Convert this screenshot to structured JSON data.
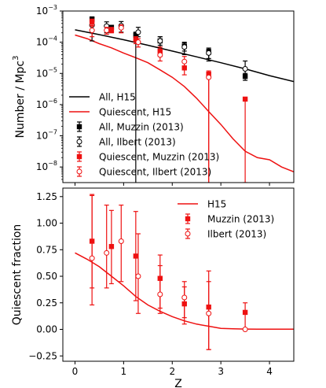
{
  "colors": {
    "all": "#000000",
    "quiescent": "#ee1111",
    "axis": "#000000"
  },
  "chart_data": [
    {
      "id": "top",
      "type": "line",
      "scale_y": "log",
      "ylabel": "Number / Mpc",
      "ylabel_sup": "3",
      "xlim": [
        -0.25,
        4.5
      ],
      "ylim_exp": [
        -8.5,
        -3
      ],
      "x_ticks": [
        0,
        1,
        2,
        3,
        4
      ],
      "y_ticks": [
        {
          "exp": -8,
          "label": "10",
          "sup": "−8"
        },
        {
          "exp": -7,
          "label": "10",
          "sup": "−7"
        },
        {
          "exp": -6,
          "label": "10",
          "sup": "−6"
        },
        {
          "exp": -5,
          "label": "10",
          "sup": "−5"
        },
        {
          "exp": -4,
          "label": "10",
          "sup": "−4"
        },
        {
          "exp": -3,
          "label": "10",
          "sup": "−3"
        }
      ],
      "legend": {
        "placement": "bottom-left",
        "entries": [
          {
            "label": "All, H15",
            "marker": "line",
            "series": "all"
          },
          {
            "label": "Quiescent, H15",
            "marker": "line",
            "series": "quiescent"
          },
          {
            "label": "All, Muzzin (2013)",
            "marker": "square",
            "series": "all"
          },
          {
            "label": "All, Ilbert (2013)",
            "marker": "circle",
            "series": "all"
          },
          {
            "label": "Quiescent, Muzzin (2013)",
            "marker": "square",
            "series": "quiescent"
          },
          {
            "label": "Quiescent, Ilbert (2013)",
            "marker": "circle",
            "series": "quiescent"
          }
        ]
      },
      "lines": [
        {
          "series": "all",
          "x": [
            0,
            0.5,
            1,
            1.5,
            2,
            2.5,
            3,
            3.5,
            4,
            4.5
          ],
          "y": [
            0.00025,
            0.000175,
            0.00012,
            8e-05,
            5.2e-05,
            3.4e-05,
            2.2e-05,
            1.4e-05,
            8.5e-06,
            5.5e-06
          ]
        },
        {
          "series": "quiescent",
          "x": [
            0,
            0.25,
            0.5,
            0.75,
            1,
            1.25,
            1.5,
            1.75,
            2,
            2.25,
            2.5,
            2.75,
            3,
            3.25,
            3.5,
            3.75,
            4,
            4.25,
            4.5
          ],
          "y": [
            0.00017,
            0.00013,
            9e-05,
            6.6e-05,
            4.5e-05,
            3.2e-05,
            2.2e-05,
            1.3e-05,
            7.5e-06,
            3.8e-06,
            1.6e-06,
            6e-07,
            2.3e-07,
            8e-08,
            3.2e-08,
            2e-08,
            1.7e-08,
            1e-08,
            7e-09
          ]
        }
      ],
      "points": [
        {
          "series": "all",
          "marker": "square",
          "x": [
            0.35,
            0.75,
            1.25,
            1.75,
            2.25,
            2.75,
            3.5
          ],
          "y": [
            0.00055,
            0.0003,
            0.00017,
            0.00011,
            7.5e-05,
            4.8e-05,
            8e-06
          ],
          "ylo": [
            0.00045,
            0.00026,
            1e-09,
            8e-05,
            5.2e-05,
            3e-05,
            6e-06
          ],
          "yhi": [
            0.00065,
            0.00034,
            0.00021,
            0.00015,
            9.5e-05,
            6.5e-05,
            1e-05
          ]
        },
        {
          "series": "all",
          "marker": "circle",
          "x": [
            0.35,
            0.65,
            0.95,
            1.3,
            1.75,
            2.25,
            2.75,
            3.5
          ],
          "y": [
            0.00035,
            0.00033,
            0.00034,
            0.00021,
            0.00011,
            7e-05,
            4.5e-05,
            1.4e-05
          ],
          "ylo": [
            0.00011,
            0.0002,
            0.00021,
            0.00015,
            7e-05,
            4e-05,
            2.5e-05,
            8e-06
          ],
          "yhi": [
            0.0006,
            0.00045,
            0.00046,
            0.0003,
            0.00015,
            0.0001,
            6e-05,
            2.5e-05
          ]
        },
        {
          "series": "quiescent",
          "marker": "square",
          "x": [
            0.35,
            0.75,
            1.25,
            1.75,
            2.25,
            2.75,
            3.5
          ],
          "y": [
            0.00045,
            0.00024,
            0.00012,
            5.2e-05,
            1.5e-05,
            9.5e-06,
            1.5e-06
          ],
          "ylo": [
            0.00035,
            0.0002,
            9e-05,
            3.5e-05,
            9e-06,
            1e-09,
            1e-09
          ],
          "yhi": [
            0.00055,
            0.0003,
            0.00015,
            7e-05,
            2.2e-05,
            1.2e-05,
            1.5e-06
          ]
        },
        {
          "series": "quiescent",
          "marker": "circle",
          "x": [
            0.35,
            0.65,
            0.95,
            1.3,
            1.75,
            2.25,
            2.75,
            3.5
          ],
          "y": [
            0.00024,
            0.00024,
            0.00029,
            0.0001,
            3.9e-05,
            2.4e-05,
            7.5e-06,
            1e-09
          ],
          "ylo": [
            0.00015,
            0.00018,
            0.0002,
            7e-05,
            2.5e-05,
            1.5e-05,
            1e-09,
            1e-09
          ],
          "yhi": [
            0.00033,
            0.0003,
            0.00036,
            0.00013,
            5.2e-05,
            3.5e-05,
            1e-05,
            1e-09
          ]
        }
      ]
    },
    {
      "id": "bottom",
      "type": "line",
      "xlabel": "Z",
      "ylabel": "Quiescent fraction",
      "xlim": [
        -0.25,
        4.5
      ],
      "ylim": [
        -0.3,
        1.33
      ],
      "x_ticks": [
        0,
        1,
        2,
        3,
        4
      ],
      "y_ticks": [
        -0.25,
        0.0,
        0.25,
        0.5,
        0.75,
        1.0,
        1.25
      ],
      "y_tick_labels": [
        "−0.25",
        "0.00",
        "0.25",
        "0.50",
        "0.75",
        "1.00",
        "1.25"
      ],
      "legend": {
        "placement": "top-right",
        "entries": [
          {
            "label": "H15",
            "marker": "line",
            "series": "quiescent"
          },
          {
            "label": "Muzzin (2013)",
            "marker": "square",
            "series": "quiescent"
          },
          {
            "label": "Ilbert (2013)",
            "marker": "circle",
            "series": "quiescent"
          }
        ]
      },
      "lines": [
        {
          "series": "quiescent",
          "x": [
            0,
            0.25,
            0.5,
            0.75,
            1,
            1.25,
            1.5,
            1.75,
            2,
            2.25,
            2.5,
            2.75,
            3,
            3.25,
            3.5,
            3.75,
            4,
            4.25,
            4.5
          ],
          "y": [
            0.72,
            0.66,
            0.59,
            0.5,
            0.41,
            0.31,
            0.23,
            0.17,
            0.12,
            0.08,
            0.05,
            0.03,
            0.01,
            0.005,
            0.003,
            0.002,
            0.002,
            0.002,
            0.002
          ]
        }
      ],
      "points": [
        {
          "series": "quiescent",
          "marker": "square",
          "x": [
            0.35,
            0.75,
            1.25,
            1.75,
            2.25,
            2.75,
            3.5
          ],
          "y": [
            0.83,
            0.78,
            0.69,
            0.48,
            0.24,
            0.21,
            0.16
          ],
          "ylo": [
            0.39,
            0.43,
            0.27,
            0.2,
            0.11,
            -0.19,
            0.0
          ],
          "yhi": [
            1.27,
            1.12,
            1.11,
            0.7,
            0.4,
            0.55,
            0.25
          ]
        },
        {
          "series": "quiescent",
          "marker": "circle",
          "x": [
            0.35,
            0.65,
            0.95,
            1.3,
            1.75,
            2.25,
            2.75,
            3.5
          ],
          "y": [
            0.67,
            0.72,
            0.83,
            0.5,
            0.33,
            0.3,
            0.15,
            0.0
          ],
          "ylo": [
            0.23,
            0.39,
            0.45,
            0.15,
            0.15,
            0.05,
            -0.19,
            0.0
          ],
          "yhi": [
            1.26,
            1.17,
            1.17,
            0.9,
            0.6,
            0.45,
            0.45,
            0.0
          ]
        }
      ]
    }
  ]
}
